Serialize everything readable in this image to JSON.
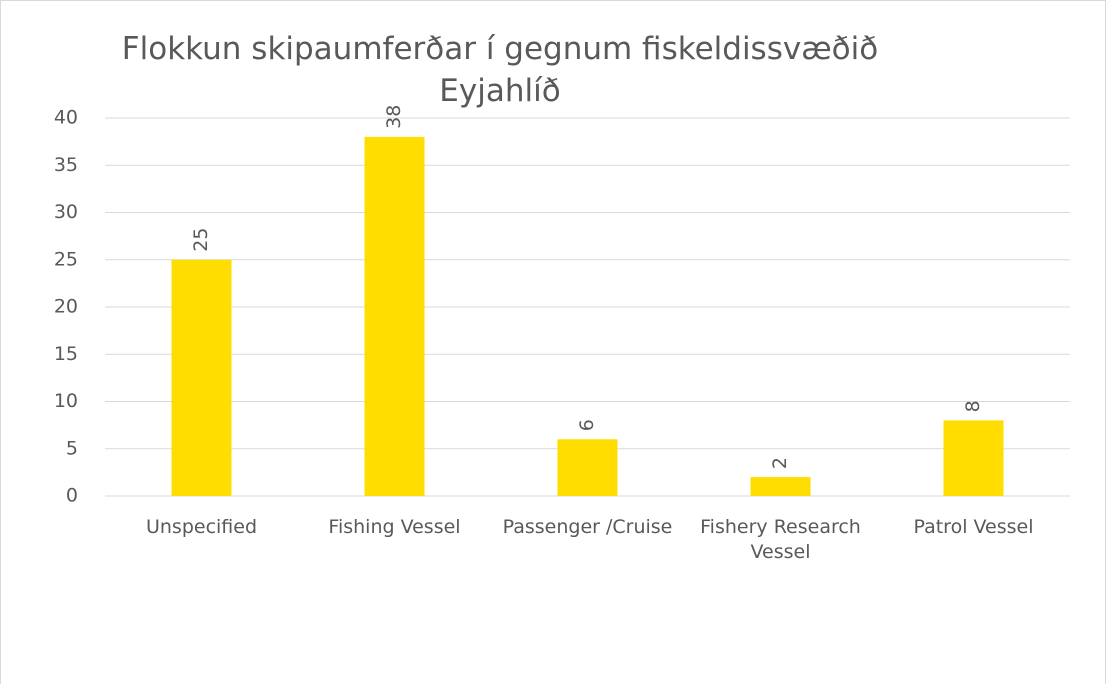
{
  "chart_data": {
    "type": "bar",
    "title": "Flokkun skipaumferðar í gegnum fiskeldissvæðið Eyjahlíð",
    "categories": [
      "Unspecified",
      "Fishing Vessel",
      "Passenger ∕Cruise",
      "Fishery Research Vessel",
      "Patrol Vessel"
    ],
    "values": [
      25,
      38,
      6,
      2,
      8
    ],
    "color": "#ffdd00",
    "ylim": [
      0,
      40
    ],
    "yticks": [
      0,
      5,
      10,
      15,
      20,
      25,
      30,
      35,
      40
    ],
    "grid": true
  }
}
